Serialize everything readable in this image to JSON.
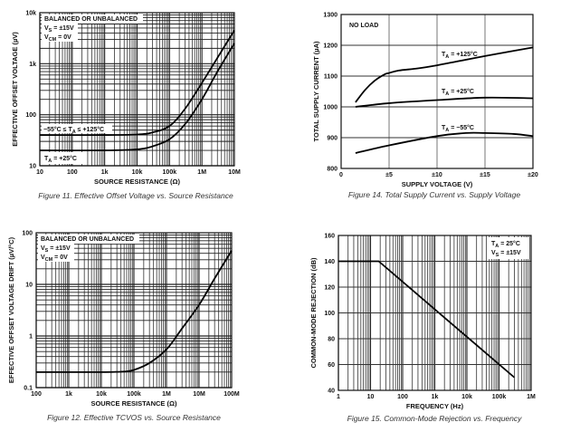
{
  "chart_data": [
    {
      "id": "fig11",
      "type": "line",
      "caption": "Figure 11. Effective Offset Voltage vs. Source Resistance",
      "xlabel": "SOURCE RESISTANCE (Ω)",
      "ylabel": "EFFECTIVE OFFSET VOLTAGE (µV)",
      "xscale": "log",
      "yscale": "log",
      "xlim": [
        10,
        10000000
      ],
      "ylim": [
        10,
        10000
      ],
      "xticks": [
        {
          "v": 10,
          "label": "10"
        },
        {
          "v": 100,
          "label": "100"
        },
        {
          "v": 1000,
          "label": "1k"
        },
        {
          "v": 10000,
          "label": "10k"
        },
        {
          "v": 100000,
          "label": "100k"
        },
        {
          "v": 1000000,
          "label": "1M"
        },
        {
          "v": 10000000,
          "label": "10M"
        }
      ],
      "yticks": [
        {
          "v": 10,
          "label": "10"
        },
        {
          "v": 100,
          "label": "100"
        },
        {
          "v": 1000,
          "label": "1k"
        },
        {
          "v": 10000,
          "label": "10k"
        }
      ],
      "grid": true,
      "annotations": {
        "box_line1": "BALANCED OR UNBALANCED",
        "box_line2_main": "V",
        "box_line2_sub": "S",
        "box_line2_rest": " = ±15V",
        "box_line3_main": "V",
        "box_line3_sub": "CM",
        "box_line3_rest": " = 0V",
        "upper_label_a": "−55°C ≤ T",
        "upper_label_sub": "A",
        "upper_label_b": " ≤ +125°C",
        "lower_label_a": "T",
        "lower_label_sub": "A",
        "lower_label_b": " = +25°C"
      },
      "series": [
        {
          "name": "−55°C ≤ TA ≤ +125°C",
          "x": [
            10,
            1000,
            10000,
            30000,
            100000,
            300000,
            1000000,
            3000000,
            10000000
          ],
          "y": [
            40,
            40,
            41,
            45,
            60,
            130,
            420,
            1300,
            4500
          ]
        },
        {
          "name": "TA = +25°C",
          "x": [
            10,
            1000,
            10000,
            30000,
            100000,
            300000,
            1000000,
            3000000,
            10000000
          ],
          "y": [
            20,
            20,
            21,
            24,
            33,
            65,
            200,
            700,
            2500
          ]
        }
      ]
    },
    {
      "id": "fig14",
      "type": "line",
      "caption": "Figure 14. Total Supply Current vs. Supply Voltage",
      "xlabel": "SUPPLY VOLTAGE (V)",
      "ylabel": "TOTAL SUPPLY CURRENT (µA)",
      "xscale": "linear",
      "yscale": "linear",
      "xlim": [
        0,
        20
      ],
      "ylim": [
        800,
        1300
      ],
      "xticks": [
        {
          "v": 0,
          "label": "0"
        },
        {
          "v": 5,
          "label": "±5"
        },
        {
          "v": 10,
          "label": "±10"
        },
        {
          "v": 15,
          "label": "±15"
        },
        {
          "v": 20,
          "label": "±20"
        }
      ],
      "yticks": [
        {
          "v": 800,
          "label": "800"
        },
        {
          "v": 900,
          "label": "900"
        },
        {
          "v": 1000,
          "label": "1000"
        },
        {
          "v": 1100,
          "label": "1100"
        },
        {
          "v": 1200,
          "label": "1200"
        },
        {
          "v": 1300,
          "label": "1300"
        }
      ],
      "grid": true,
      "annotations": {
        "no_load": "NO LOAD",
        "l125_a": "T",
        "l125_sub": "A",
        "l125_b": " = +125°C",
        "l25_a": "T",
        "l25_sub": "A",
        "l25_b": " = +25°C",
        "lm55_a": "T",
        "lm55_sub": "A",
        "lm55_b": " = −55°C"
      },
      "series": [
        {
          "name": "TA = +125°C",
          "x": [
            1.5,
            2.5,
            3.5,
            4.5,
            5,
            6,
            8,
            10,
            12,
            15,
            18,
            20
          ],
          "y": [
            1015,
            1055,
            1085,
            1105,
            1110,
            1118,
            1125,
            1135,
            1147,
            1165,
            1182,
            1193
          ]
        },
        {
          "name": "TA = +25°C",
          "x": [
            1.5,
            5,
            10,
            15,
            20
          ],
          "y": [
            1000,
            1012,
            1022,
            1030,
            1028
          ]
        },
        {
          "name": "TA = −55°C",
          "x": [
            1.5,
            5,
            10,
            13,
            15,
            18,
            20
          ],
          "y": [
            850,
            875,
            905,
            915,
            915,
            912,
            905
          ]
        }
      ]
    },
    {
      "id": "fig12",
      "type": "line",
      "caption": "Figure 12. Effective TCVOS vs. Source Resistance",
      "xlabel": "SOURCE RESISTANCE (Ω)",
      "ylabel": "EFFECTIVE OFFSET VOLTAGE DRIFT (µV/°C)",
      "xscale": "log",
      "yscale": "log",
      "xlim": [
        100,
        100000000
      ],
      "ylim": [
        0.1,
        100
      ],
      "xticks": [
        {
          "v": 100,
          "label": "100"
        },
        {
          "v": 1000,
          "label": "1k"
        },
        {
          "v": 10000,
          "label": "10k"
        },
        {
          "v": 100000,
          "label": "100k"
        },
        {
          "v": 1000000,
          "label": "1M"
        },
        {
          "v": 10000000,
          "label": "10M"
        },
        {
          "v": 100000000,
          "label": "100M"
        }
      ],
      "yticks": [
        {
          "v": 0.1,
          "label": "0.1"
        },
        {
          "v": 1,
          "label": "1"
        },
        {
          "v": 10,
          "label": "10"
        },
        {
          "v": 100,
          "label": "100"
        }
      ],
      "grid": true,
      "annotations": {
        "box_line1": "BALANCED OR UNBALANCED",
        "box_line2_main": "V",
        "box_line2_sub": "S",
        "box_line2_rest": " = ±15V",
        "box_line3_main": "V",
        "box_line3_sub": "CM",
        "box_line3_rest": " = 0V"
      },
      "series": [
        {
          "name": "TCVOS",
          "x": [
            100,
            10000,
            50000,
            100000,
            300000,
            1000000,
            3000000,
            10000000,
            30000000,
            100000000
          ],
          "y": [
            0.2,
            0.2,
            0.205,
            0.22,
            0.3,
            0.55,
            1.4,
            4,
            13,
            45
          ]
        }
      ]
    },
    {
      "id": "fig15",
      "type": "line",
      "caption": "Figure 15. Common-Mode Rejection vs. Frequency",
      "xlabel": "FREQUENCY (Hz)",
      "ylabel": "COMMON-MODE REJECTION (dB)",
      "xscale": "log",
      "yscale": "linear",
      "xlim": [
        1,
        1000000
      ],
      "ylim": [
        40,
        160
      ],
      "xticks": [
        {
          "v": 1,
          "label": "1"
        },
        {
          "v": 10,
          "label": "10"
        },
        {
          "v": 100,
          "label": "100"
        },
        {
          "v": 1000,
          "label": "1k"
        },
        {
          "v": 10000,
          "label": "10k"
        },
        {
          "v": 100000,
          "label": "100k"
        },
        {
          "v": 1000000,
          "label": "1M"
        }
      ],
      "yticks": [
        {
          "v": 40,
          "label": "40"
        },
        {
          "v": 60,
          "label": "60"
        },
        {
          "v": 80,
          "label": "80"
        },
        {
          "v": 100,
          "label": "100"
        },
        {
          "v": 120,
          "label": "120"
        },
        {
          "v": 140,
          "label": "140"
        },
        {
          "v": 160,
          "label": "160"
        }
      ],
      "grid": true,
      "annotations": {
        "l1_a": "T",
        "l1_sub": "A",
        "l1_b": " = 25°C",
        "l2_a": "V",
        "l2_sub": "S",
        "l2_b": " = ±15V"
      },
      "series": [
        {
          "name": "CMR",
          "x": [
            1,
            18,
            300000
          ],
          "y": [
            140,
            140,
            50
          ]
        }
      ]
    }
  ]
}
